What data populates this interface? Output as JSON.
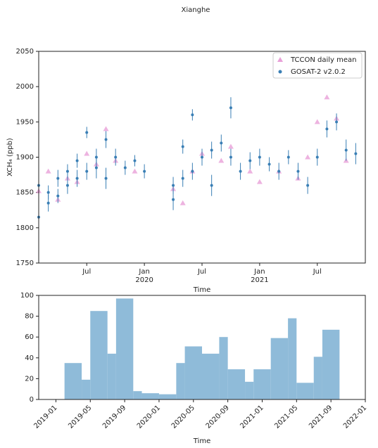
{
  "title": "Xianghe",
  "chart_data": [
    {
      "type": "scatter",
      "xlabel": "Time",
      "ylabel": "XCH₄ (ppb)",
      "xlim": [
        "2019-02",
        "2021-12"
      ],
      "ylim": [
        1750,
        2050
      ],
      "yticks": [
        1750,
        1800,
        1850,
        1900,
        1950,
        2000,
        2050
      ],
      "xticks": [
        {
          "value": "2019-07",
          "label": "Jul"
        },
        {
          "value": "2020-01",
          "label": "Jan"
        },
        {
          "value": "2020-07",
          "label": "Jul"
        },
        {
          "value": "2021-01",
          "label": "Jan"
        },
        {
          "value": "2021-07",
          "label": "Jul"
        }
      ],
      "xtick_years": [
        {
          "value": "2020-01",
          "label": "2020"
        },
        {
          "value": "2021-01",
          "label": "2021"
        }
      ],
      "legend": "upper right",
      "series": [
        {
          "name": "TCCON daily mean",
          "color": "#e8a0d8",
          "marker": "triangle",
          "x": [
            "2019-02",
            "2019-03",
            "2019-04",
            "2019-05",
            "2019-06",
            "2019-07",
            "2019-08",
            "2019-09",
            "2019-10",
            "2019-12",
            "2020-04",
            "2020-05",
            "2020-06",
            "2020-07",
            "2020-09",
            "2020-10",
            "2020-12",
            "2021-01",
            "2021-03",
            "2021-05",
            "2021-06",
            "2021-07",
            "2021-08",
            "2021-09",
            "2021-10"
          ],
          "values": [
            1852,
            1880,
            1840,
            1870,
            1865,
            1905,
            1890,
            1940,
            1895,
            1880,
            1855,
            1835,
            1880,
            1905,
            1895,
            1915,
            1880,
            1865,
            1880,
            1870,
            1900,
            1950,
            1985,
            1955,
            1895
          ]
        },
        {
          "name": "GOSAT-2 v2.0.2",
          "color": "#3a7fb5",
          "marker": "dot",
          "x": [
            "2019-02",
            "2019-02",
            "2019-03",
            "2019-03",
            "2019-04",
            "2019-04",
            "2019-05",
            "2019-05",
            "2019-06",
            "2019-06",
            "2019-07",
            "2019-07",
            "2019-08",
            "2019-08",
            "2019-09",
            "2019-09",
            "2019-10",
            "2019-11",
            "2019-12",
            "2020-01",
            "2020-04",
            "2020-04",
            "2020-05",
            "2020-05",
            "2020-06",
            "2020-06",
            "2020-07",
            "2020-08",
            "2020-08",
            "2020-09",
            "2020-10",
            "2020-10",
            "2020-11",
            "2020-12",
            "2021-01",
            "2021-02",
            "2021-03",
            "2021-04",
            "2021-05",
            "2021-06",
            "2021-07",
            "2021-08",
            "2021-09",
            "2021-10",
            "2021-11"
          ],
          "values": [
            1815,
            1860,
            1835,
            1850,
            1845,
            1870,
            1860,
            1880,
            1870,
            1895,
            1935,
            1880,
            1885,
            1900,
            1870,
            1925,
            1900,
            1885,
            1895,
            1880,
            1860,
            1840,
            1870,
            1915,
            1880,
            1960,
            1900,
            1910,
            1860,
            1920,
            1970,
            1900,
            1880,
            1895,
            1900,
            1890,
            1880,
            1900,
            1880,
            1860,
            1900,
            1940,
            1950,
            1910,
            1905
          ],
          "errors": [
            12,
            10,
            12,
            10,
            10,
            12,
            12,
            10,
            12,
            10,
            8,
            12,
            15,
            12,
            15,
            12,
            12,
            10,
            8,
            10,
            12,
            15,
            12,
            10,
            12,
            8,
            12,
            12,
            15,
            12,
            15,
            12,
            12,
            12,
            12,
            10,
            12,
            10,
            12,
            12,
            12,
            12,
            12,
            15,
            15
          ]
        }
      ]
    },
    {
      "type": "histogram",
      "xlabel": "Time",
      "color": "#8fbbd9",
      "xlim": [
        "2018-11",
        "2022-01"
      ],
      "ylim": [
        0,
        100
      ],
      "yticks": [
        0,
        20,
        40,
        60,
        80,
        100
      ],
      "xticks": [
        "2019-01",
        "2019-05",
        "2019-09",
        "2020-01",
        "2020-05",
        "2020-09",
        "2021-01",
        "2021-05",
        "2021-09",
        "2022-01"
      ],
      "bins": [
        "2019-02",
        "2019-04",
        "2019-05",
        "2019-07",
        "2019-08",
        "2019-10",
        "2019-11",
        "2020-01",
        "2020-03",
        "2020-04",
        "2020-06",
        "2020-08",
        "2020-09",
        "2020-11",
        "2020-12",
        "2021-02",
        "2021-04",
        "2021-05",
        "2021-07",
        "2021-08",
        "2021-10"
      ],
      "values": [
        35,
        19,
        85,
        44,
        97,
        8,
        6,
        5,
        35,
        51,
        44,
        60,
        29,
        17,
        29,
        59,
        78,
        16,
        41,
        67
      ]
    }
  ]
}
